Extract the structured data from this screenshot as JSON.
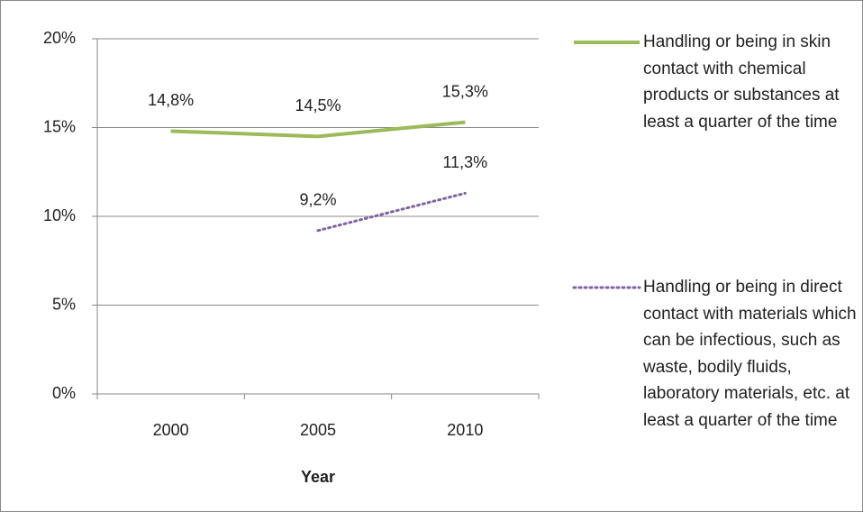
{
  "chart_data": {
    "type": "line",
    "x_label": "Year",
    "categories": [
      "2000",
      "2005",
      "2010"
    ],
    "series": [
      {
        "name": "Handling or being in skin contact with chemical products or substances at least a quarter of the time",
        "color": "#9bbb59",
        "style": "solid",
        "values": [
          14.8,
          14.5,
          15.3
        ],
        "value_labels": [
          "14,8%",
          "14,5%",
          "15,3%"
        ]
      },
      {
        "name": "Handling or being in direct contact with materials which can be infectious, such as waste, bodily fluids, laboratory materials, etc. at least a quarter of the time",
        "color": "#8064a2",
        "style": "dotted",
        "values": [
          null,
          9.2,
          11.3
        ],
        "value_labels": [
          null,
          "9,2%",
          "11,3%"
        ]
      }
    ],
    "ylim": [
      0,
      20
    ],
    "yticks": [
      {
        "value": 0,
        "label": "0%"
      },
      {
        "value": 5,
        "label": "5%"
      },
      {
        "value": 10,
        "label": "10%"
      },
      {
        "value": 15,
        "label": "15%"
      },
      {
        "value": 20,
        "label": "20%"
      }
    ],
    "grid": true,
    "legend": "right"
  }
}
